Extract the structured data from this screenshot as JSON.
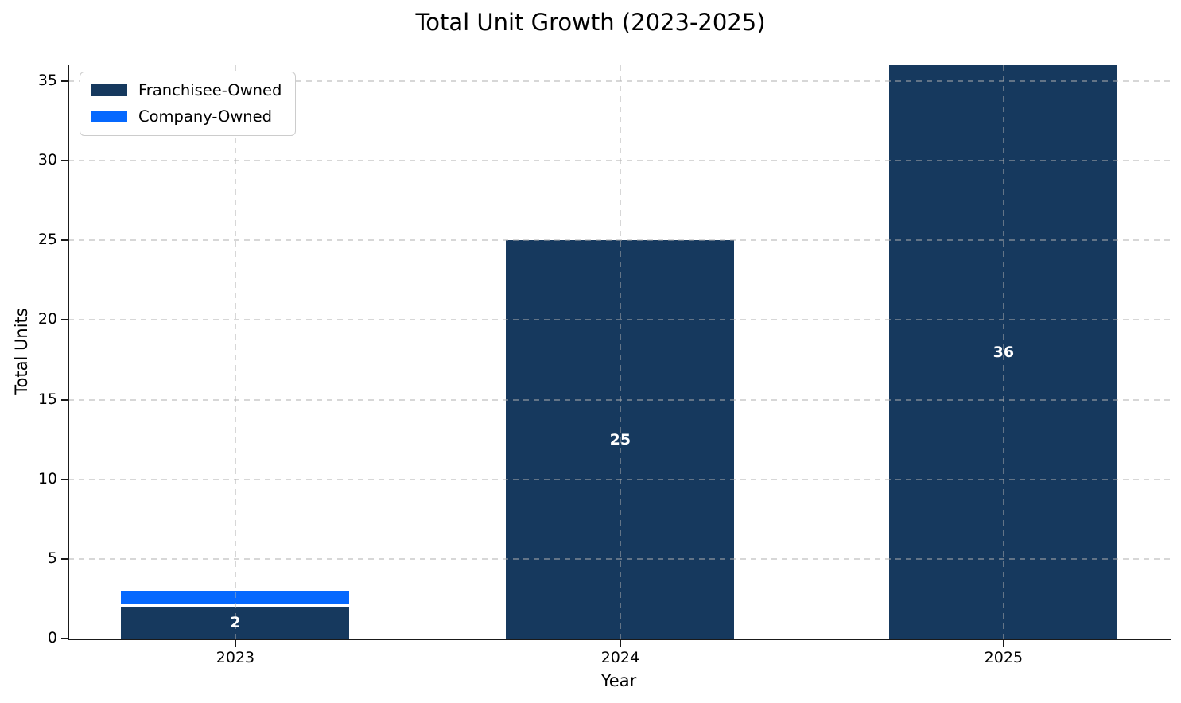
{
  "title": "Total Unit Growth (2023-2025)",
  "chart_data": {
    "type": "bar",
    "stacked": true,
    "title": "Total Unit Growth (2023-2025)",
    "xlabel": "Year",
    "ylabel": "Total Units",
    "categories": [
      "2023",
      "2024",
      "2025"
    ],
    "series": [
      {
        "name": "Franchisee-Owned",
        "color": "#16395e",
        "values": [
          2,
          25,
          36
        ],
        "labels": [
          "2",
          "25",
          "36"
        ]
      },
      {
        "name": "Company-Owned",
        "color": "#0568fe",
        "values": [
          1,
          0,
          0
        ],
        "labels": [
          "",
          "",
          ""
        ]
      }
    ],
    "yticks": [
      0,
      5,
      10,
      15,
      20,
      25,
      30,
      35
    ],
    "ylim": [
      0,
      36
    ],
    "grid": true,
    "grid_style": "dashed",
    "legend_position": "upper-left",
    "value_label_color": "#ffffff",
    "segment_divider_color": "#ffffff"
  }
}
